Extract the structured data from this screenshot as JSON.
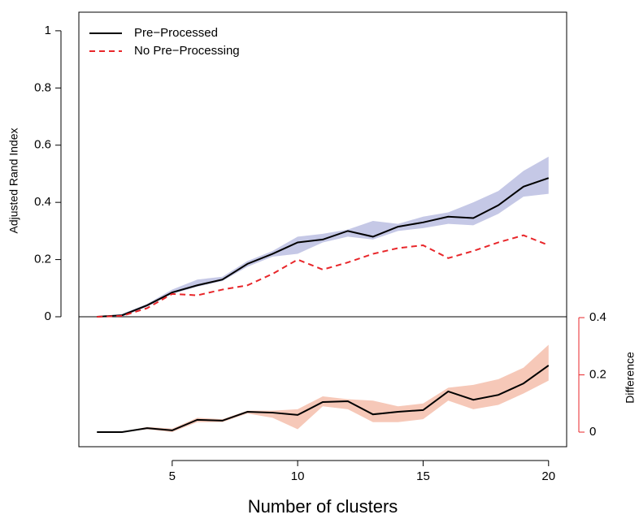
{
  "chart_data": [
    {
      "type": "line",
      "ylabel": "Adjusted Rand Index",
      "x": [
        2,
        3,
        4,
        5,
        6,
        7,
        8,
        9,
        10,
        11,
        12,
        13,
        14,
        15,
        16,
        17,
        18,
        19,
        20
      ],
      "xlim": [
        1.28,
        20.72
      ],
      "ylim": [
        0,
        1.065
      ],
      "yticks": [
        0,
        0.2,
        0.4,
        0.6,
        0.8,
        1
      ],
      "legend": "top-left",
      "series": [
        {
          "name": "Pre−Processed",
          "color": "#000000",
          "linestyle": "solid",
          "values": [
            0,
            0.005,
            0.04,
            0.085,
            0.11,
            0.13,
            0.185,
            0.22,
            0.26,
            0.27,
            0.3,
            0.28,
            0.315,
            0.33,
            0.35,
            0.345,
            0.39,
            0.455,
            0.485
          ],
          "band": {
            "color": "#c5c8e6",
            "lower": [
              0,
              0,
              0.035,
              0.08,
              0.105,
              0.125,
              0.175,
              0.21,
              0.22,
              0.26,
              0.28,
              0.27,
              0.3,
              0.31,
              0.325,
              0.32,
              0.36,
              0.42,
              0.43
            ],
            "upper": [
              0,
              0.01,
              0.045,
              0.095,
              0.13,
              0.14,
              0.195,
              0.23,
              0.28,
              0.29,
              0.305,
              0.335,
              0.325,
              0.35,
              0.365,
              0.4,
              0.44,
              0.51,
              0.56
            ]
          }
        },
        {
          "name": "No Pre−Processing",
          "color": "#e8262a",
          "linestyle": "dashed",
          "values": [
            0,
            0.003,
            0.03,
            0.08,
            0.075,
            0.095,
            0.11,
            0.15,
            0.2,
            0.165,
            0.19,
            0.22,
            0.24,
            0.25,
            0.205,
            0.23,
            0.26,
            0.285,
            0.25
          ]
        }
      ]
    },
    {
      "type": "line",
      "xlabel": "Number of clusters",
      "y2label": "Difference",
      "x": [
        2,
        3,
        4,
        5,
        6,
        7,
        8,
        9,
        10,
        11,
        12,
        13,
        14,
        15,
        16,
        17,
        18,
        19,
        20
      ],
      "xlim": [
        1.28,
        20.72
      ],
      "xticks": [
        5,
        10,
        15,
        20
      ],
      "y2lim": [
        -0.051,
        0.403
      ],
      "y2ticks": [
        0,
        0.2,
        0.4
      ],
      "axis_color": "#e8262a",
      "series": [
        {
          "axis": "y2",
          "color": "#000000",
          "linestyle": "solid",
          "values": [
            0,
            0,
            0.014,
            0.006,
            0.043,
            0.04,
            0.071,
            0.068,
            0.06,
            0.105,
            0.108,
            0.062,
            0.071,
            0.077,
            0.142,
            0.113,
            0.13,
            0.17,
            0.233
          ],
          "band": {
            "color": "#f6c8b8",
            "lower": [
              0,
              0,
              0.01,
              0,
              0.035,
              0.035,
              0.065,
              0.05,
              0.01,
              0.09,
              0.08,
              0.035,
              0.035,
              0.045,
              0.11,
              0.08,
              0.095,
              0.135,
              0.18
            ],
            "upper": [
              0,
              0,
              0.018,
              0.012,
              0.05,
              0.045,
              0.075,
              0.075,
              0.08,
              0.125,
              0.115,
              0.11,
              0.09,
              0.1,
              0.155,
              0.165,
              0.185,
              0.225,
              0.305
            ]
          }
        }
      ]
    }
  ]
}
